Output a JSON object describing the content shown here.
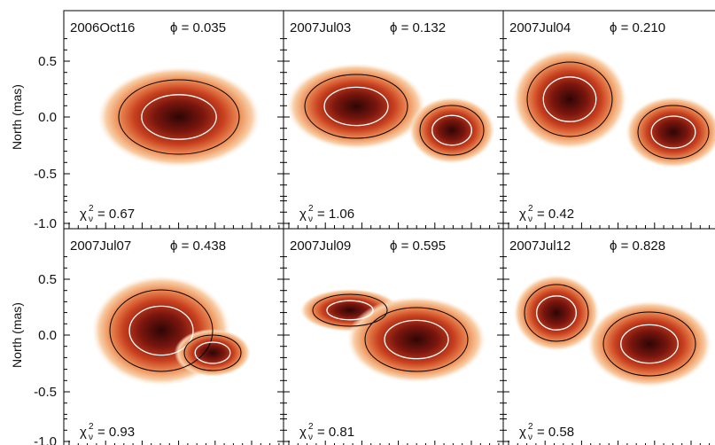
{
  "figure": {
    "y_label": "North (mas)",
    "y_ticks": [
      "0.5",
      "0.0",
      "-0.5",
      "-1.0"
    ],
    "chi_symbol": "χ",
    "chi_sup": "2",
    "chi_sub": "ν",
    "panels": [
      {
        "date": "2006Oct16",
        "phase": "ϕ = 0.035",
        "chi2": "= 0.67"
      },
      {
        "date": "2007Jul03",
        "phase": "ϕ = 0.132",
        "chi2": "= 1.06"
      },
      {
        "date": "2007Jul04",
        "phase": "ϕ = 0.210",
        "chi2": "= 0.42"
      },
      {
        "date": "2007Jul07",
        "phase": "ϕ = 0.438",
        "chi2": "= 0.93"
      },
      {
        "date": "2007Jul09",
        "phase": "ϕ = 0.595",
        "chi2": "= 0.81"
      },
      {
        "date": "2007Jul12",
        "phase": "ϕ = 0.828",
        "chi2": "= 0.58"
      }
    ]
  }
}
